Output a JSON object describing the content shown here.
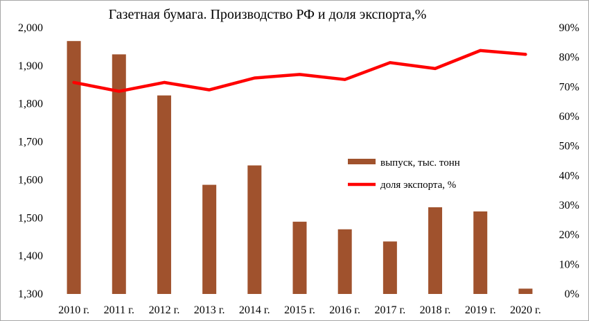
{
  "chart_data": {
    "type": "bar+line",
    "title": "Газетная бумага. Производство РФ и доля экспорта,%",
    "categories": [
      "2010 г.",
      "2011 г.",
      "2012 г.",
      "2013 г.",
      "2014 г.",
      "2015 г.",
      "2016 г.",
      "2017 г.",
      "2018 г.",
      "2019 г.",
      "2020 г."
    ],
    "series": [
      {
        "name": "выпуск, тыс. тонн",
        "type": "bar",
        "axis": "left",
        "color": "#a0522d",
        "values": [
          1965,
          1930,
          1822,
          1587,
          1638,
          1490,
          1470,
          1438,
          1528,
          1517,
          1314
        ]
      },
      {
        "name": "доля экспорта, %",
        "type": "line",
        "axis": "right",
        "color": "#ff0000",
        "values": [
          71.5,
          68.5,
          71.5,
          69,
          73,
          74.2,
          72.5,
          78.2,
          76.2,
          82.3,
          81
        ]
      }
    ],
    "y_left": {
      "min": 1300,
      "max": 2000,
      "step": 100,
      "ticks": [
        "1,300",
        "1,400",
        "1,500",
        "1,600",
        "1,700",
        "1,800",
        "1,900",
        "2,000"
      ]
    },
    "y_right": {
      "min": 0,
      "max": 90,
      "step": 10,
      "ticks": [
        "0%",
        "10%",
        "20%",
        "30%",
        "40%",
        "50%",
        "60%",
        "70%",
        "80%",
        "90%"
      ]
    },
    "grid": false,
    "legend_position": "center-right"
  }
}
